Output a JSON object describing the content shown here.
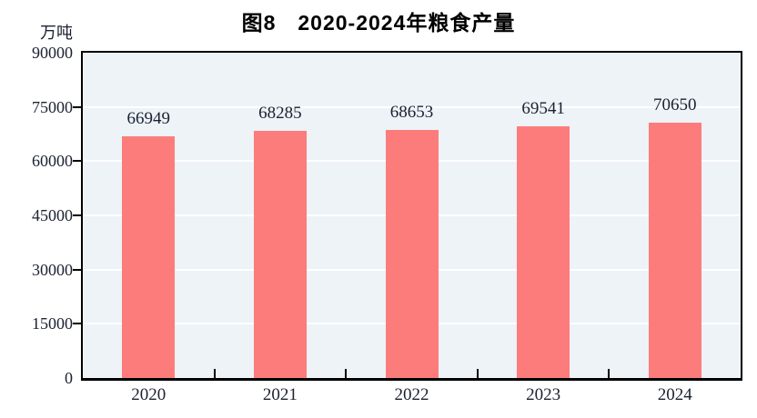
{
  "chart_data": {
    "type": "bar",
    "title": "图8　2020-2024年粮食产量",
    "categories": [
      "2020",
      "2021",
      "2022",
      "2023",
      "2024"
    ],
    "values": [
      66949,
      68285,
      68653,
      69541,
      70650
    ],
    "value_labels": [
      "66949",
      "68285",
      "68653",
      "69541",
      "70650"
    ],
    "xlabel": "",
    "ylabel": "万吨",
    "ylim": [
      0,
      90000
    ],
    "yticks": [
      0,
      15000,
      30000,
      45000,
      60000,
      75000,
      90000
    ],
    "ytick_labels": [
      "0",
      "15000",
      "30000",
      "45000",
      "60000",
      "75000",
      "90000"
    ],
    "grid": true,
    "legend_position": "none",
    "colors": {
      "bar": "#fc7c7c",
      "plot_background": "#edf3f7",
      "gridline": "#ffffff",
      "axis": "#000000",
      "text": "#1b2130",
      "title_text": "#000000",
      "page_background": "#ffffff"
    }
  }
}
